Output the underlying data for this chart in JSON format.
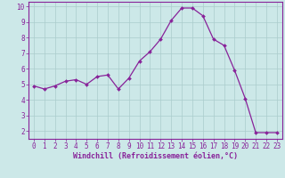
{
  "x": [
    0,
    1,
    2,
    3,
    4,
    5,
    6,
    7,
    8,
    9,
    10,
    11,
    12,
    13,
    14,
    15,
    16,
    17,
    18,
    19,
    20,
    21,
    22,
    23
  ],
  "y": [
    4.9,
    4.7,
    4.9,
    5.2,
    5.3,
    5.0,
    5.5,
    5.6,
    4.7,
    5.4,
    6.5,
    7.1,
    7.9,
    9.1,
    9.9,
    9.9,
    9.4,
    7.9,
    7.5,
    5.9,
    4.1,
    1.9,
    1.9,
    1.9
  ],
  "line_color": "#882299",
  "marker": "D",
  "markersize": 2.0,
  "linewidth": 0.9,
  "background_color": "#cce8e8",
  "grid_color": "#aacccc",
  "xlabel": "Windchill (Refroidissement éolien,°C)",
  "xlabel_color": "#882299",
  "xlabel_fontsize": 6.0,
  "tick_color": "#882299",
  "tick_fontsize": 5.5,
  "ylim": [
    1.5,
    10.3
  ],
  "xlim": [
    -0.5,
    23.5
  ],
  "yticks": [
    2,
    3,
    4,
    5,
    6,
    7,
    8,
    9,
    10
  ],
  "xticks": [
    0,
    1,
    2,
    3,
    4,
    5,
    6,
    7,
    8,
    9,
    10,
    11,
    12,
    13,
    14,
    15,
    16,
    17,
    18,
    19,
    20,
    21,
    22,
    23
  ]
}
